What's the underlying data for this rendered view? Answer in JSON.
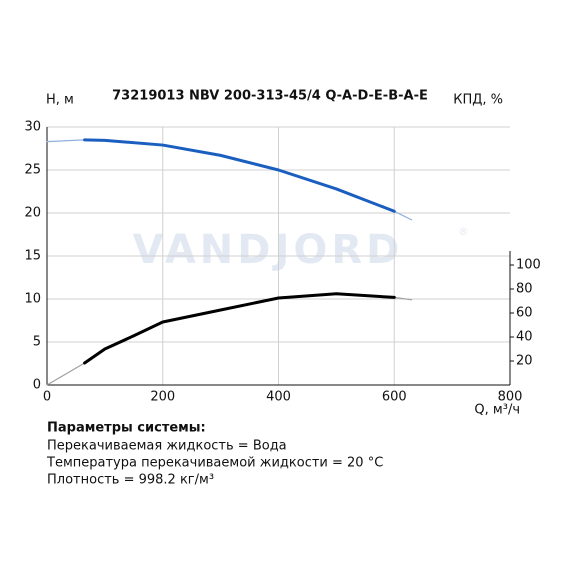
{
  "chart_data": {
    "type": "line",
    "title": "73219013 NBV 200-313-45/4 Q-A-D-E-B-A-E",
    "watermark": "VANDJORD",
    "watermark_mark": "®",
    "y_label": "H, м",
    "y2_label": "КПД, %",
    "x_label": "Q, м³/ч",
    "xlim": [
      0,
      800
    ],
    "xticks": [
      0,
      200,
      400,
      600,
      800
    ],
    "ylim": [
      0,
      30
    ],
    "yticks": [
      0,
      5,
      10,
      15,
      20,
      25,
      30
    ],
    "y2lim": [
      0,
      215
    ],
    "y2ticks": [
      20,
      40,
      60,
      80,
      100
    ],
    "grid": true,
    "series": [
      {
        "color": "#8fb0de",
        "line_width": 1.2,
        "x": [
          0,
          65,
          100,
          200,
          300,
          400,
          500,
          600,
          630
        ],
        "values": [
          28.3,
          28.5,
          28.45,
          27.9,
          26.7,
          25.0,
          22.8,
          20.2,
          19.2
        ]
      },
      {
        "color": "#1a5fbf",
        "line_width": 3,
        "x": [
          65,
          100,
          200,
          300,
          400,
          500,
          600
        ],
        "values": [
          28.5,
          28.45,
          27.9,
          26.7,
          25.0,
          22.8,
          20.2
        ]
      },
      {
        "color": "#a0a0a0",
        "line_width": 1.2,
        "axis": "y2",
        "x": [
          0,
          65,
          100,
          150,
          200,
          300,
          400,
          500,
          600,
          630
        ],
        "values": [
          0,
          18.3,
          30,
          41,
          52.5,
          62.5,
          72.5,
          76,
          73,
          71
        ]
      },
      {
        "color": "#000000",
        "line_width": 3,
        "axis": "y2",
        "x": [
          65,
          100,
          150,
          200,
          300,
          400,
          500,
          600
        ],
        "values": [
          18.3,
          30,
          41,
          52.5,
          62.5,
          72.5,
          76,
          73
        ]
      }
    ],
    "parameters": {
      "heading": "Параметры системы:",
      "lines": [
        "Перекачиваемая жидкость = Вода",
        "Температура перекачиваемой жидкости = 20 °C",
        "Плотность = 998.2 кг/м³"
      ]
    }
  }
}
